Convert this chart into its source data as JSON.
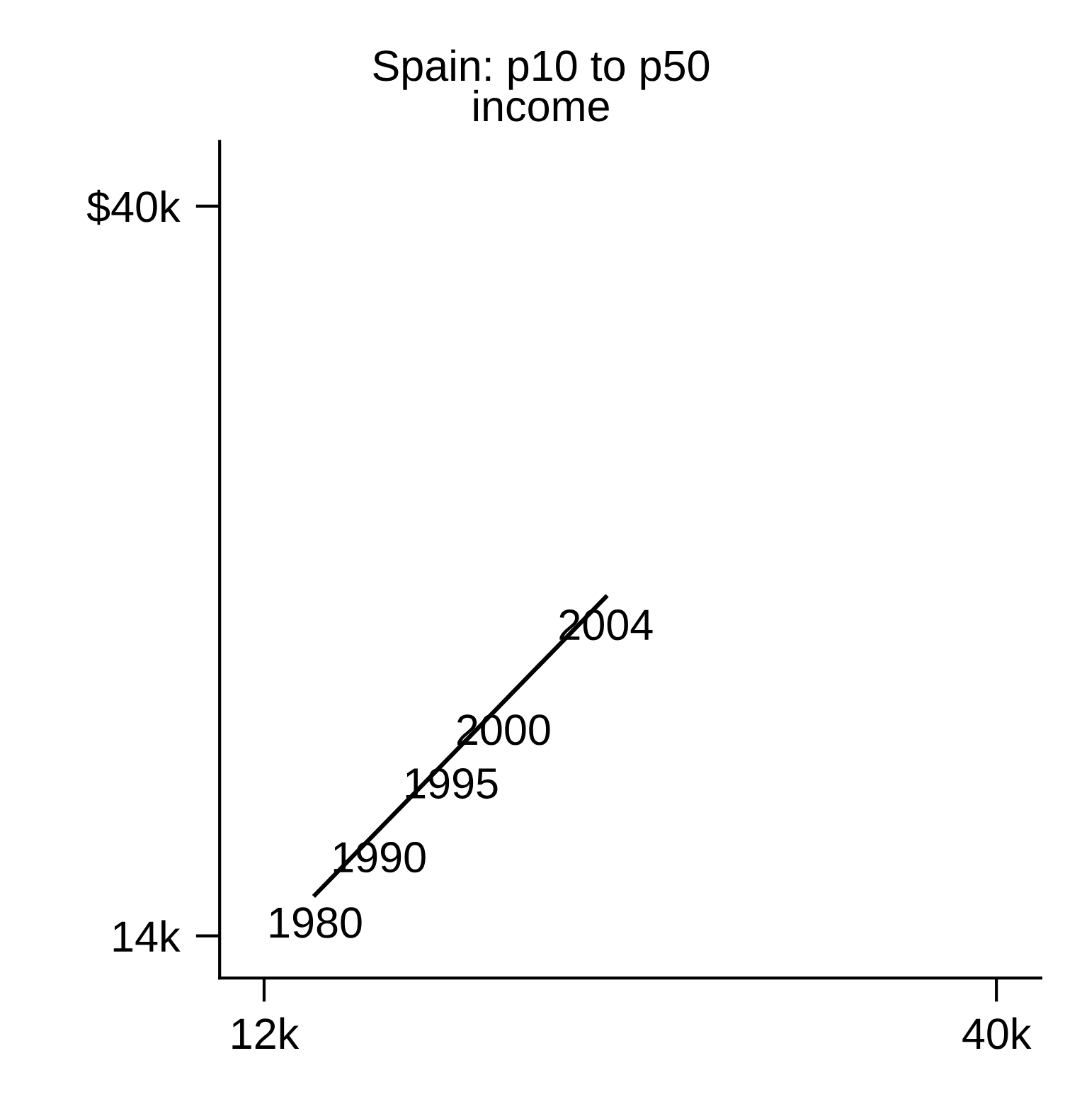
{
  "chart_data": {
    "type": "line",
    "title": "Spain: p10 to p50\nincome",
    "x": [
      13.95,
      16.39,
      19.15,
      21.15,
      25.06
    ],
    "series": [
      {
        "color": "#000000",
        "values": [
          15.46,
          17.79,
          20.42,
          22.33,
          26.07
        ]
      }
    ],
    "xlim": [
      10.3,
      41.7
    ],
    "xticks": [
      {
        "value": 12,
        "label": "12k"
      },
      {
        "value": 40,
        "label": "40k"
      }
    ],
    "ylim": [
      12.5,
      42.3
    ],
    "yticks": [
      {
        "value": 14,
        "label": "14k"
      },
      {
        "value": 40,
        "label": "$40k"
      }
    ],
    "annotations": [
      {
        "text": "1980",
        "x": 13.95,
        "y": 15.46
      },
      {
        "text": "1990",
        "x": 16.39,
        "y": 17.79
      },
      {
        "text": "1995",
        "x": 19.15,
        "y": 20.42
      },
      {
        "text": "2000",
        "x": 21.15,
        "y": 22.33
      },
      {
        "text": "2004",
        "x": 25.06,
        "y": 26.07
      }
    ],
    "grid": false,
    "legend": false,
    "marker": "none",
    "line_style": "solid"
  }
}
